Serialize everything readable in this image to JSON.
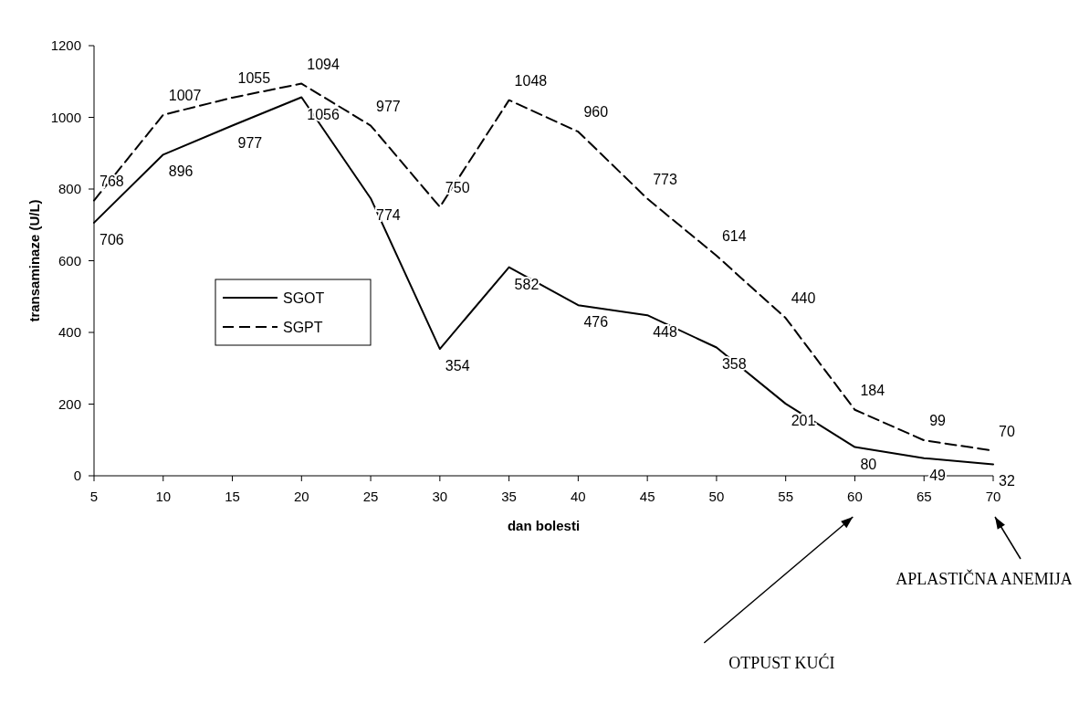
{
  "chart_data": {
    "type": "line",
    "xlabel": "dan bolesti",
    "ylabel": "transaminaze (U/L)",
    "x": [
      5,
      10,
      15,
      20,
      25,
      30,
      35,
      40,
      45,
      50,
      55,
      60,
      65,
      70
    ],
    "xlim": [
      5,
      70
    ],
    "xticks": [
      5,
      10,
      15,
      20,
      25,
      30,
      35,
      40,
      45,
      50,
      55,
      60,
      65,
      70
    ],
    "ylim": [
      0,
      1200
    ],
    "yticks": [
      0,
      200,
      400,
      600,
      800,
      1000,
      1200
    ],
    "series": [
      {
        "name": "SGOT",
        "color": "#000000",
        "line_style": "solid",
        "values": [
          706,
          896,
          977,
          1056,
          774,
          354,
          582,
          476,
          448,
          358,
          201,
          80,
          49,
          32
        ]
      },
      {
        "name": "SGPT",
        "color": "#000000",
        "line_style": "dashed",
        "values": [
          768,
          1007,
          1055,
          1094,
          977,
          750,
          1048,
          960,
          773,
          614,
          440,
          184,
          99,
          70
        ]
      }
    ],
    "data_labels": true,
    "grid": false,
    "legend": "left",
    "marker": "none",
    "annotations": [
      "OTPUST KUĆI",
      "APLASTIČNA ANEMIJA"
    ]
  }
}
